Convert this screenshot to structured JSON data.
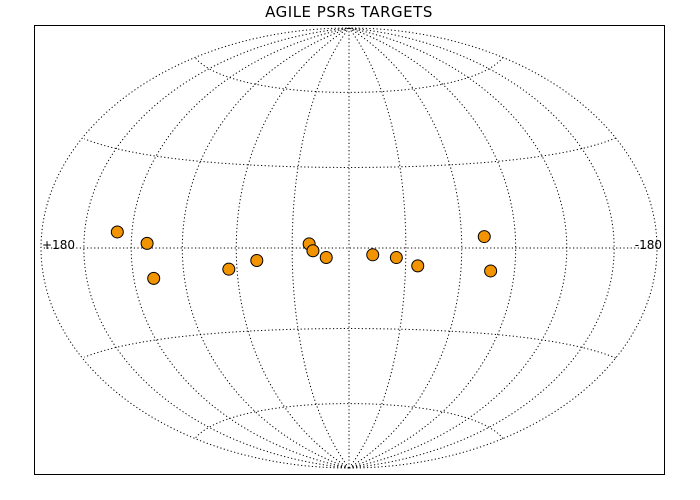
{
  "chart_data": {
    "type": "scatter",
    "projection": "aitoff-hammer",
    "title": "AGILE PSRs TARGETS",
    "x_tick_labels": {
      "left": "+180",
      "right": "-180"
    },
    "xlim": [
      180,
      -180
    ],
    "ylim": [
      -90,
      90
    ],
    "grid": true,
    "meridian_step_deg": 30,
    "parallel_step_deg": 30,
    "marker_color": "#F29400",
    "points": [
      {
        "l": 129.0,
        "b": 5.0
      },
      {
        "l": 110.5,
        "b": 1.5
      },
      {
        "l": 108.0,
        "b": -10.0
      },
      {
        "l": 64.5,
        "b": -7.5
      },
      {
        "l": 49.0,
        "b": -4.5
      },
      {
        "l": 21.0,
        "b": 1.5
      },
      {
        "l": 19.0,
        "b": -1.0
      },
      {
        "l": 12.0,
        "b": -3.5
      },
      {
        "l": -12.5,
        "b": -2.5
      },
      {
        "l": -25.0,
        "b": -3.5
      },
      {
        "l": -36.5,
        "b": -6.5
      },
      {
        "l": -72.5,
        "b": 4.0
      },
      {
        "l": -76.5,
        "b": -8.0
      }
    ]
  }
}
